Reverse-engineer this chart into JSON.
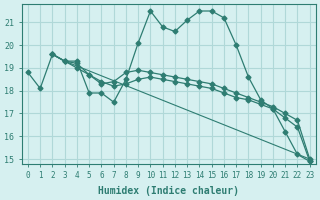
{
  "xlabel": "Humidex (Indice chaleur)",
  "ylabel": "",
  "background_color": "#d6f0f0",
  "grid_color": "#b0d8d8",
  "line_color": "#2e7d72",
  "xlim": [
    -0.5,
    23.5
  ],
  "ylim": [
    14.8,
    21.8
  ],
  "yticks": [
    15,
    16,
    17,
    18,
    19,
    20,
    21
  ],
  "xticks": [
    0,
    1,
    2,
    3,
    4,
    5,
    6,
    7,
    8,
    9,
    10,
    11,
    12,
    13,
    14,
    15,
    16,
    17,
    18,
    19,
    20,
    21,
    22,
    23
  ],
  "series": [
    {
      "x": [
        0,
        1,
        2,
        3,
        4,
        5,
        6,
        7,
        8,
        9,
        10,
        11,
        12,
        13,
        14,
        15,
        16,
        17,
        18,
        19,
        20,
        21,
        22,
        23
      ],
      "y": [
        18.8,
        18.1,
        19.6,
        19.3,
        19.3,
        17.9,
        17.9,
        17.5,
        18.5,
        20.1,
        21.5,
        20.8,
        20.6,
        21.1,
        21.5,
        21.5,
        21.2,
        20.0,
        18.6,
        17.6,
        17.2,
        16.2,
        15.2,
        14.9
      ],
      "markers": true
    },
    {
      "x": [
        2,
        3,
        4,
        5,
        6,
        7,
        8,
        9,
        10,
        11,
        12,
        13,
        14,
        15,
        16,
        17,
        18,
        19,
        20,
        21,
        22,
        23
      ],
      "y": [
        19.6,
        19.3,
        19.2,
        18.7,
        18.3,
        18.4,
        18.8,
        18.9,
        18.8,
        18.7,
        18.6,
        18.5,
        18.4,
        18.3,
        18.1,
        17.9,
        17.7,
        17.5,
        17.3,
        17.0,
        16.7,
        15.0
      ],
      "markers": true
    },
    {
      "x": [
        2,
        3,
        4,
        5,
        6,
        7,
        8,
        9,
        10,
        11,
        12,
        13,
        14,
        15,
        16,
        17,
        18,
        19,
        20,
        21,
        22,
        23
      ],
      "y": [
        19.6,
        19.3,
        19.0,
        18.7,
        18.4,
        18.2,
        18.3,
        18.5,
        18.6,
        18.5,
        18.4,
        18.3,
        18.2,
        18.1,
        17.9,
        17.7,
        17.6,
        17.4,
        17.2,
        16.8,
        16.4,
        14.9
      ],
      "markers": true
    },
    {
      "x": [
        2,
        3,
        23
      ],
      "y": [
        19.6,
        19.3,
        15.0
      ],
      "markers": false
    }
  ]
}
